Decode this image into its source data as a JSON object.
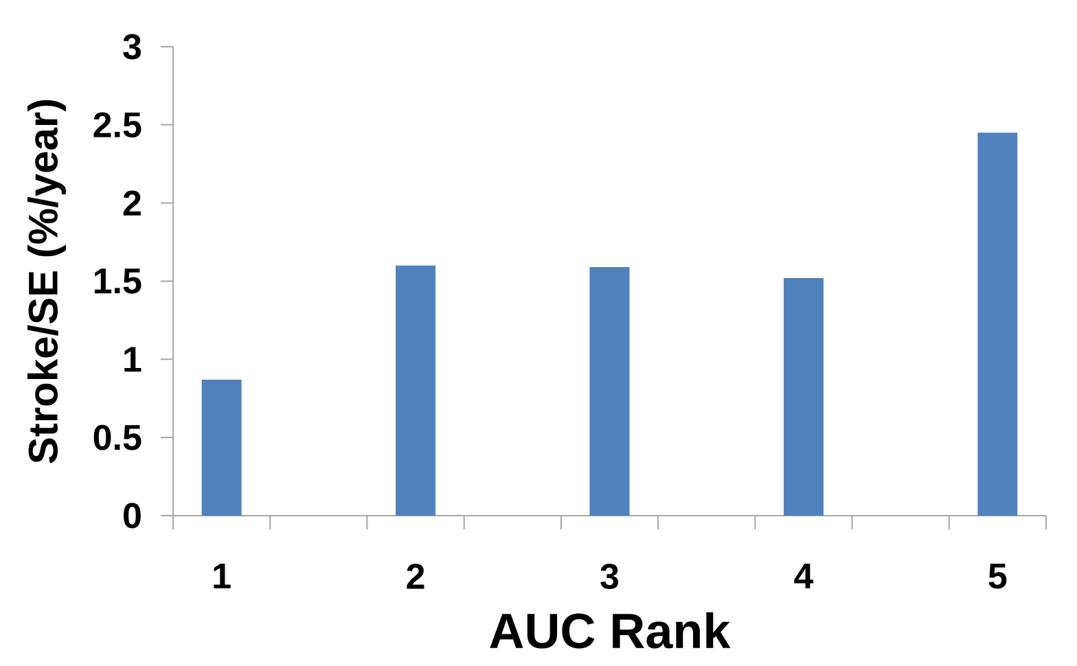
{
  "chart_data": {
    "type": "bar",
    "xlabel": "AUC Rank",
    "ylabel": "Stroke/SE (%/year)",
    "categories": [
      "1",
      "2",
      "3",
      "4",
      "5"
    ],
    "values": [
      0.87,
      1.6,
      1.59,
      1.52,
      2.45
    ],
    "color": "#4f81bd",
    "ylim": [
      0,
      3
    ],
    "yticks": [
      0,
      0.5,
      1,
      1.5,
      2,
      2.5,
      3
    ],
    "grid": false
  }
}
